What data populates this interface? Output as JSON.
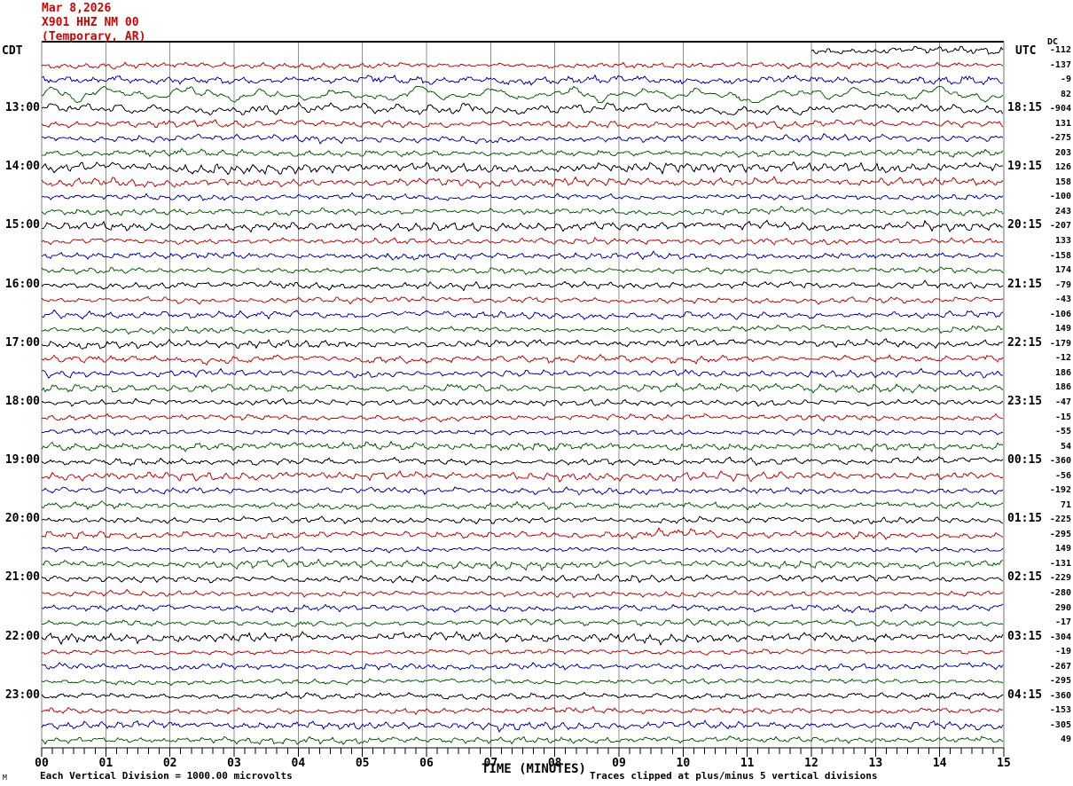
{
  "header": {
    "date": "Mar 8,2026",
    "station": "X901 HHZ NM 00",
    "location": "(Temporary, AR)"
  },
  "axes": {
    "left_timezone": "CDT",
    "right_timezone": "UTC",
    "left_hour_labels": [
      "13:00",
      "14:00",
      "15:00",
      "16:00",
      "17:00",
      "18:00",
      "19:00",
      "20:00",
      "21:00",
      "22:00",
      "23:00"
    ],
    "right_hour_labels": [
      "18:15",
      "19:15",
      "20:15",
      "21:15",
      "22:15",
      "23:15",
      "00:15",
      "01:15",
      "02:15",
      "03:15",
      "04:15"
    ],
    "minute_labels": [
      "00",
      "01",
      "02",
      "03",
      "04",
      "05",
      "06",
      "07",
      "08",
      "09",
      "10",
      "11",
      "12",
      "13",
      "14",
      "15"
    ],
    "x_axis_title": "TIME (MINUTES)"
  },
  "dc_column": {
    "header": "DC",
    "values": [
      "-112",
      "-137",
      "-9",
      "82",
      "-904",
      "131",
      "-275",
      "203",
      "126",
      "158",
      "-100",
      "243",
      "-207",
      "133",
      "-158",
      "174",
      "-79",
      "-43",
      "-106",
      "149",
      "-179",
      "-12",
      "186",
      "186",
      "-47",
      "-15",
      "-55",
      "54",
      "-360",
      "-56",
      "-192",
      "71",
      "-225",
      "-295",
      "149",
      "-131",
      "-229",
      "-280",
      "290",
      "-17",
      "-304",
      "-19",
      "-267",
      "-295",
      "-360",
      "-153",
      "-305",
      "49"
    ]
  },
  "footer": {
    "scale_note": "Each Vertical Division = 1000.00 microvolts",
    "clip_note": "Traces clipped at plus/minus 5 vertical divisions",
    "watermark": "M"
  },
  "colors": {
    "title": "#d40000",
    "trace_cycle": [
      "#000000",
      "#d40000",
      "#0000cc",
      "#006600"
    ],
    "grid": "#909090",
    "border": "#000000"
  },
  "chart_data": {
    "type": "line",
    "kind": "helicorder-seismogram",
    "title": "X901 HHZ NM 00 (Temporary, AR) Mar 8,2026",
    "xlabel": "TIME (MINUTES)",
    "x_range_minutes": [
      0,
      15
    ],
    "trace_duration_minutes": 15,
    "traces_per_hour": 4,
    "row_colors_cycle": [
      "black",
      "red",
      "blue",
      "green"
    ],
    "first_trace_data_begins_at_minute": 12,
    "row_start_times_cdt": [
      "12:00",
      "12:15",
      "12:30",
      "12:45",
      "13:00",
      "13:15",
      "13:30",
      "13:45",
      "14:00",
      "14:15",
      "14:30",
      "14:45",
      "15:00",
      "15:15",
      "15:30",
      "15:45",
      "16:00",
      "16:15",
      "16:30",
      "16:45",
      "17:00",
      "17:15",
      "17:30",
      "17:45",
      "18:00",
      "18:15",
      "18:30",
      "18:45",
      "19:00",
      "19:15",
      "19:30",
      "19:45",
      "20:00",
      "20:15",
      "20:30",
      "20:45",
      "21:00",
      "21:15",
      "21:30",
      "21:45",
      "22:00",
      "22:15",
      "22:30",
      "22:45",
      "23:00",
      "23:15",
      "23:30",
      "23:45"
    ],
    "row_dc_offsets": [
      -112,
      -137,
      -9,
      82,
      -904,
      131,
      -275,
      203,
      126,
      158,
      -100,
      243,
      -207,
      133,
      -158,
      174,
      -79,
      -43,
      -106,
      149,
      -179,
      -12,
      186,
      186,
      -47,
      -15,
      -55,
      54,
      -360,
      -56,
      -192,
      71,
      -225,
      -295,
      149,
      -131,
      -229,
      -280,
      290,
      -17,
      -304,
      -19,
      -267,
      -295,
      -360,
      -153,
      -305,
      49
    ],
    "hour_rows_left_cdt": [
      "13:00",
      "14:00",
      "15:00",
      "16:00",
      "17:00",
      "18:00",
      "19:00",
      "20:00",
      "21:00",
      "22:00",
      "23:00"
    ],
    "hour_rows_right_utc": [
      "18:15",
      "19:15",
      "20:15",
      "21:15",
      "22:15",
      "23:15",
      "00:15",
      "01:15",
      "02:15",
      "03:15",
      "04:15"
    ],
    "amplitude_note": "continuous ambient noise; largest oscillations on the 12:45 (green) and 13:00 (black) traces",
    "scale": "1 vertical division = 1000.00 microvolts, clipped at +/-5 divisions"
  }
}
